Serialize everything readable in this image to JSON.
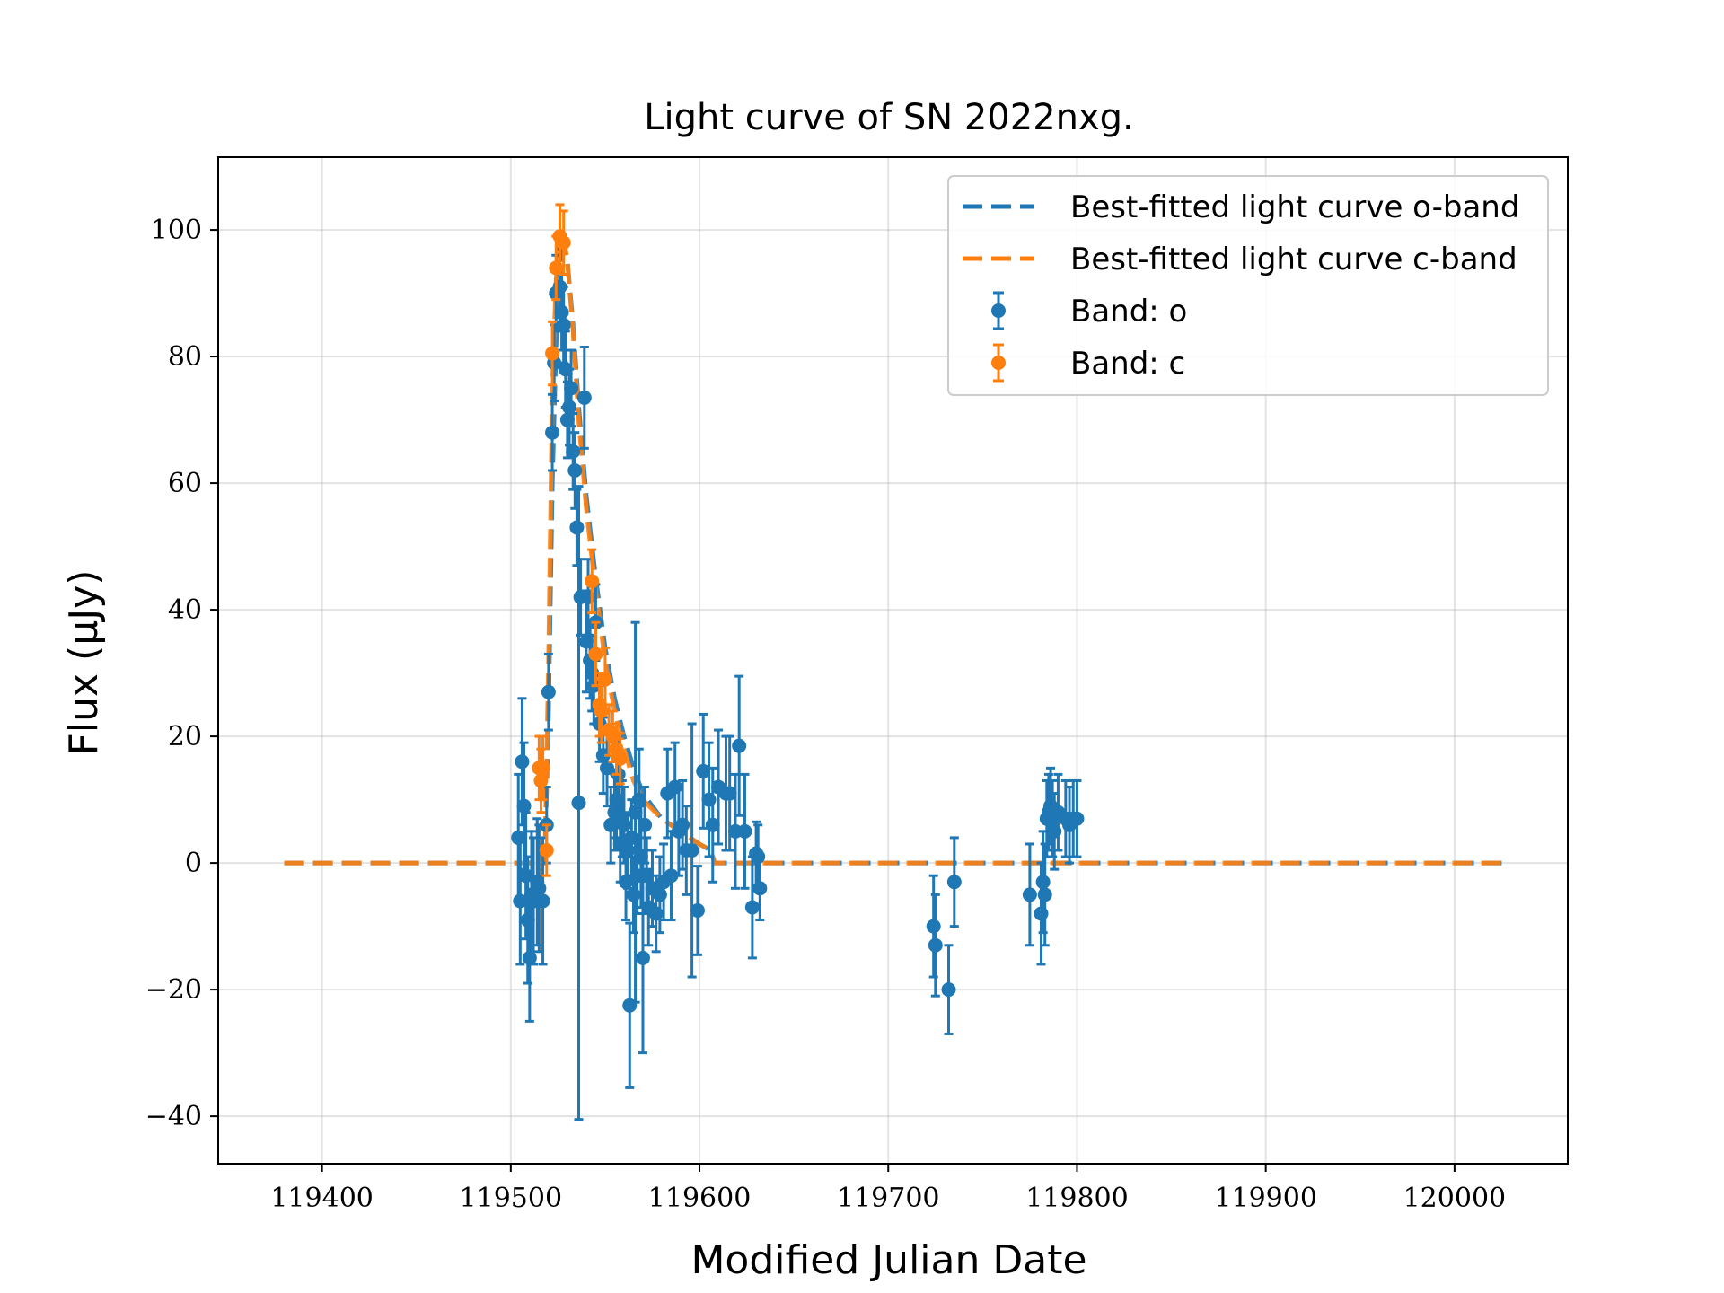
{
  "chart_data": {
    "type": "scatter",
    "title": "Light curve of SN 2022nxg.",
    "xlabel": "Modified Julian Date",
    "ylabel": "Flux (μJy)",
    "xlim": [
      119345,
      120060
    ],
    "ylim": [
      -47.5,
      111.5
    ],
    "xticks": [
      119400,
      119500,
      119600,
      119700,
      119800,
      119900,
      120000
    ],
    "xtick_labels": [
      "119400",
      "119500",
      "119600",
      "119700",
      "119800",
      "119900",
      "120000"
    ],
    "yticks": [
      -40,
      -20,
      0,
      20,
      40,
      60,
      80,
      100
    ],
    "ytick_labels": [
      "−40",
      "−20",
      "0",
      "20",
      "40",
      "60",
      "80",
      "100"
    ],
    "grid": true,
    "legend_position": "top-right",
    "colors": {
      "o": "#1f77b4",
      "c": "#ff7f0e"
    },
    "legend": [
      {
        "label": "Best-fitted light curve o-band",
        "kind": "dashed-line",
        "band": "o"
      },
      {
        "label": "Best-fitted light curve c-band",
        "kind": "dashed-line",
        "band": "c"
      },
      {
        "label": "Band: o",
        "kind": "errorbar",
        "band": "o"
      },
      {
        "label": "Band: c",
        "kind": "errorbar",
        "band": "c"
      }
    ],
    "fit_o": {
      "x": [
        119380,
        119518,
        119520,
        119522,
        119524,
        119526,
        119528,
        119530,
        119533,
        119536,
        119540,
        119545,
        119550,
        119555,
        119560,
        119565,
        119570,
        119580,
        119590,
        119600,
        119606,
        119608,
        120025
      ],
      "y": [
        0,
        0,
        24,
        60,
        82,
        93,
        97,
        95,
        85,
        72,
        58,
        45,
        34,
        26,
        20,
        15,
        11,
        7,
        5,
        3,
        2,
        0,
        0
      ]
    },
    "fit_c": {
      "x": [
        119380,
        119518,
        119520,
        119522,
        119524,
        119526,
        119528,
        119530,
        119533,
        119536,
        119540,
        119545,
        119550,
        119555,
        119560,
        119565,
        119570,
        119580,
        119590,
        119600,
        119606,
        119608,
        120025
      ],
      "y": [
        0,
        0,
        32,
        75,
        92,
        99,
        99,
        95,
        84,
        70,
        56,
        43,
        32,
        24,
        18,
        13,
        10,
        7,
        5,
        3,
        2,
        0,
        0
      ]
    },
    "series": [
      {
        "name": "Band: o",
        "x": [
          119504,
          119505,
          119506,
          119507,
          119508,
          119509,
          119510,
          119511,
          119512,
          119514,
          119515,
          119517,
          119519,
          119520,
          119522,
          119523,
          119524,
          119526,
          119527,
          119528,
          119529,
          119530,
          119531,
          119532,
          119533,
          119534,
          119535,
          119536,
          119537,
          119539,
          119540,
          119541,
          119542,
          119543,
          119544,
          119545,
          119547,
          119549,
          119551,
          119553,
          119555,
          119556,
          119557,
          119558,
          119559,
          119560,
          119561,
          119562,
          119563,
          119564,
          119565,
          119566,
          119567,
          119568,
          119569,
          119570,
          119571,
          119572,
          119573,
          119575,
          119577,
          119579,
          119581,
          119583,
          119585,
          119587,
          119589,
          119591,
          119593,
          119596,
          119599,
          119602,
          119605,
          119607,
          119610,
          119614,
          119616,
          119619,
          119621,
          119624,
          119628,
          119630,
          119631,
          119632,
          119724,
          119725,
          119732,
          119735,
          119775,
          119781,
          119782,
          119783,
          119784,
          119785,
          119786,
          119787,
          119788,
          119790,
          119794,
          119796,
          119798,
          119800
        ],
        "y": [
          4,
          -6,
          16,
          9,
          -2,
          -9,
          -15,
          -5,
          -6,
          -3,
          -4,
          -6,
          6,
          27,
          68,
          79,
          90,
          91,
          87,
          85,
          78,
          70,
          72,
          75,
          65,
          62,
          53,
          9.5,
          42,
          73.5,
          35,
          42,
          32,
          30,
          28,
          38,
          22,
          17,
          15,
          6,
          8,
          10,
          14,
          3,
          7,
          6,
          -3,
          2,
          -22.5,
          4,
          -5,
          8,
          -2,
          10,
          1,
          -15,
          6,
          -2,
          -7,
          -4,
          -8,
          -5,
          -3,
          11,
          -2,
          12,
          5,
          6,
          2,
          2,
          -7.5,
          14.5,
          10,
          6,
          12,
          11,
          11,
          5,
          18.5,
          5,
          -7,
          1.5,
          1,
          -4,
          -10,
          -13,
          -20,
          -3,
          -5,
          -8,
          -3,
          -5,
          7,
          8,
          9,
          7,
          5,
          8,
          7,
          6,
          7,
          7
        ],
        "err": [
          10,
          10,
          10,
          10,
          10,
          10,
          10,
          10,
          10,
          10,
          10,
          10,
          6,
          6,
          6,
          6,
          6,
          6,
          6,
          6,
          6,
          6,
          6,
          6,
          6,
          6,
          6,
          50,
          6,
          8,
          8,
          6,
          6,
          6,
          6,
          6,
          6,
          6,
          6,
          6,
          6,
          6,
          6,
          6,
          6,
          6,
          6,
          6,
          13,
          6,
          6,
          30,
          6,
          8,
          8,
          15,
          6,
          6,
          6,
          6,
          6,
          6,
          6,
          7,
          7,
          7,
          7,
          7,
          7,
          20,
          7,
          9,
          9,
          9,
          9,
          9,
          9,
          9,
          11,
          9,
          8,
          5,
          5,
          5,
          8,
          8,
          7,
          7,
          8,
          8,
          8,
          8,
          6,
          6,
          6,
          6,
          6,
          6,
          6,
          6,
          6,
          6
        ]
      },
      {
        "name": "Band: c",
        "x": [
          119515,
          119516,
          119517,
          119519,
          119522,
          119524,
          119526,
          119528,
          119543,
          119545,
          119547,
          119548,
          119550,
          119552,
          119554,
          119556,
          119558
        ],
        "y": [
          15,
          13,
          15,
          2,
          80.5,
          94,
          99,
          98,
          44.5,
          33,
          25,
          24,
          29,
          21,
          20,
          18,
          16.5
        ],
        "err": [
          5,
          5,
          5,
          4,
          5,
          5,
          5,
          5,
          5,
          5,
          5,
          5,
          5,
          4,
          4,
          4,
          4
        ]
      }
    ]
  }
}
